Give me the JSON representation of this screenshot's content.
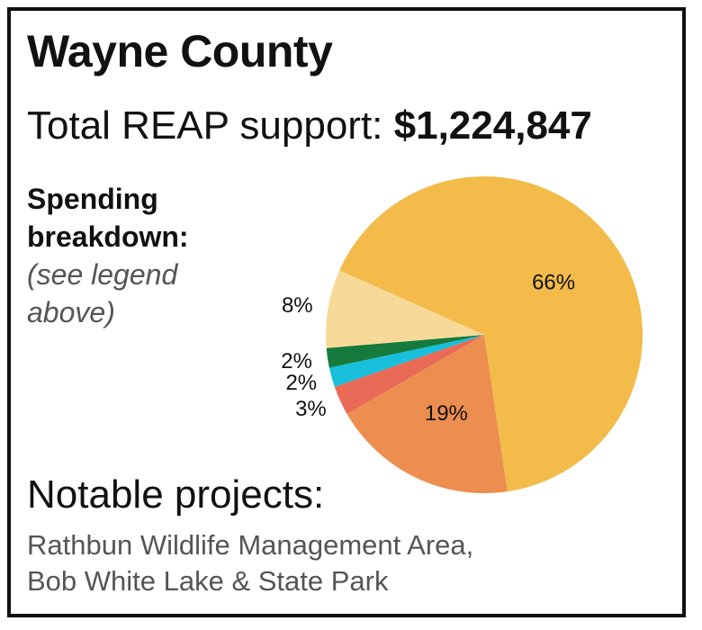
{
  "title": "Wayne County",
  "total": {
    "label": "Total REAP support:",
    "amount": "$1,224,847"
  },
  "breakdown": {
    "heading_line1": "Spending",
    "heading_line2": "breakdown:",
    "note_line1": "(see legend",
    "note_line2": "above)"
  },
  "projects": {
    "heading": "Notable projects:",
    "items": [
      "Rathbun Wildlife Management Area,",
      "Bob White Lake & State Park"
    ]
  },
  "chart_data": {
    "type": "pie",
    "title": "",
    "slices": [
      {
        "label": "66%",
        "value": 66,
        "color": "#F2BB4A"
      },
      {
        "label": "19%",
        "value": 19,
        "color": "#EC8E50"
      },
      {
        "label": "3%",
        "value": 3,
        "color": "#E86A57"
      },
      {
        "label": "2%",
        "value": 2,
        "color": "#17BFDB"
      },
      {
        "label": "2%",
        "value": 2,
        "color": "#157A3B"
      },
      {
        "label": "8%",
        "value": 8,
        "color": "#F8DA98"
      }
    ]
  }
}
